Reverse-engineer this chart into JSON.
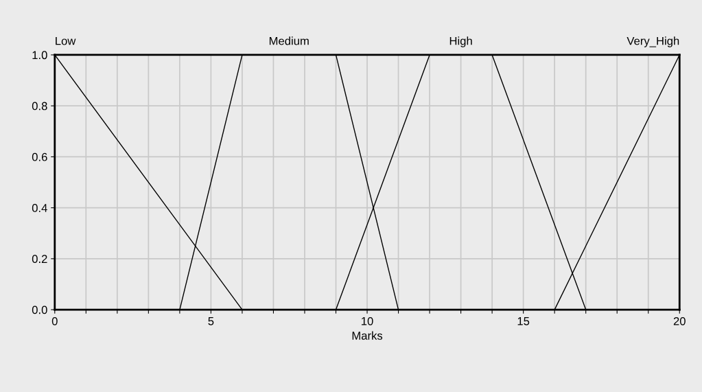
{
  "chart_data": {
    "type": "line",
    "xlabel": "Marks",
    "x": [
      0,
      4,
      6,
      9,
      11,
      12,
      14,
      16,
      17,
      20
    ],
    "series": [
      {
        "name": "Low",
        "color": "#000000",
        "x": [
          0,
          6,
          20
        ],
        "values": [
          1,
          0,
          0
        ]
      },
      {
        "name": "Medium",
        "color": "#000000",
        "values": [
          0,
          0,
          1,
          1,
          0,
          0,
          0,
          0,
          0,
          0
        ]
      },
      {
        "name": "High",
        "color": "#000000",
        "x": [
          0,
          9,
          12,
          14,
          17,
          20
        ],
        "values": [
          0,
          0,
          1,
          1,
          0,
          0
        ]
      },
      {
        "name": "Very_High",
        "color": "#000000",
        "values": [
          0,
          0,
          0,
          0,
          0,
          0,
          0,
          0,
          0.25,
          1
        ]
      }
    ],
    "xlim": [
      0,
      20
    ],
    "ylim": [
      0,
      1
    ],
    "xticks": [
      0,
      {
        "value": 1,
        "label": null
      },
      {
        "value": 2,
        "label": null
      },
      {
        "value": 3,
        "label": null
      },
      {
        "value": 4,
        "label": null
      },
      5,
      {
        "value": 6,
        "label": null
      },
      {
        "value": 7,
        "label": null
      },
      {
        "value": 8,
        "label": null
      },
      {
        "value": 9,
        "label": null
      },
      10,
      {
        "value": 11,
        "label": null
      },
      {
        "value": 12,
        "label": null
      },
      {
        "value": 13,
        "label": null
      },
      {
        "value": 14,
        "label": null
      },
      15,
      {
        "value": 16,
        "label": null
      },
      {
        "value": 17,
        "label": null
      },
      {
        "value": 18,
        "label": null
      },
      {
        "value": 19,
        "label": null
      },
      20
    ],
    "yticks": [
      {
        "value": 0,
        "label": "0.0"
      },
      {
        "value": 0.2,
        "label": "0.2"
      },
      {
        "value": 0.4,
        "label": "0.4"
      },
      {
        "value": 0.6,
        "label": "0.6"
      },
      {
        "value": 0.8,
        "label": "0.8"
      },
      {
        "value": 1,
        "label": "1.0"
      }
    ],
    "grid": true,
    "marker": "none",
    "line_style": "solid",
    "legend": false
  }
}
